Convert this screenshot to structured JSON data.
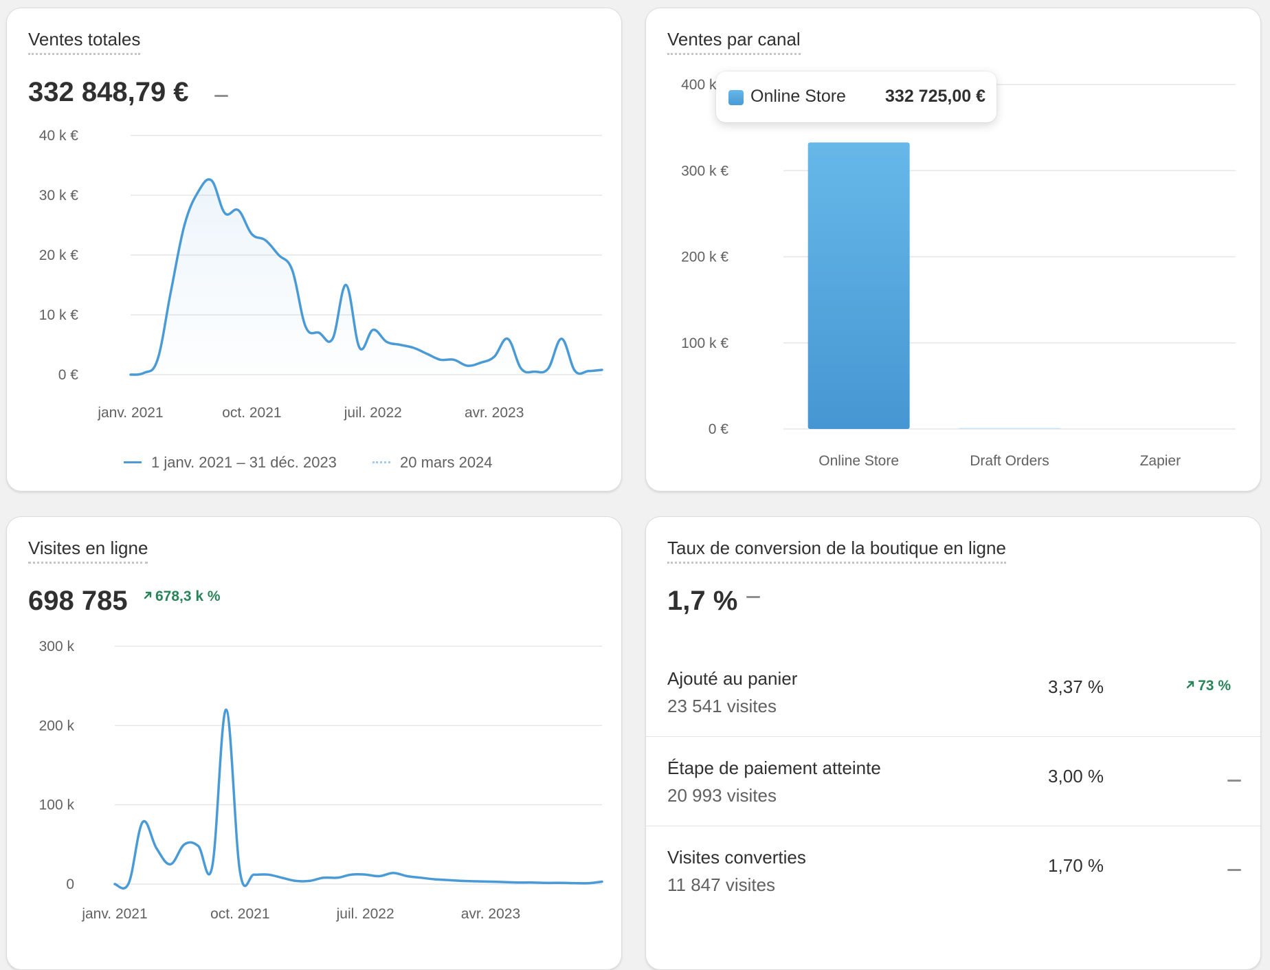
{
  "sales": {
    "title": "Ventes totales",
    "value": "332 848,79 €",
    "comparison": "—",
    "legend": {
      "current": "1 janv. 2021 – 31 déc. 2023",
      "previous": "20 mars 2024"
    },
    "line_color": "#4a9ad6"
  },
  "channel": {
    "title": "Ventes par canal",
    "tooltip": {
      "name": "Online Store",
      "value": "332 725,00 €"
    },
    "bar_color": "#4a9ad6"
  },
  "visits": {
    "title": "Visites en ligne",
    "value": "698 785",
    "trend": "678,3 k %",
    "trend_icon": "arrow-up-right-icon",
    "line_color": "#4a9ad6"
  },
  "conversion": {
    "title": "Taux de conversion de la boutique en ligne",
    "value": "1,7 %",
    "comparison": "—",
    "rows": [
      {
        "label": "Ajouté au panier",
        "sub": "23 541 visites",
        "pct": "3,37 %",
        "change": "73 %",
        "change_type": "up"
      },
      {
        "label": "Étape de paiement atteinte",
        "sub": "20 993 visites",
        "pct": "3,00 %",
        "change": "—",
        "change_type": "none"
      },
      {
        "label": "Visites converties",
        "sub": "11 847 visites",
        "pct": "1,70 %",
        "change": "—",
        "change_type": "none"
      }
    ],
    "up_color": "#29845a"
  },
  "chart_data": [
    {
      "type": "area",
      "title": "Ventes totales",
      "y_ticks": [
        "0 €",
        "10 k €",
        "20 k €",
        "30 k €",
        "40 k €"
      ],
      "ylim": [
        0,
        40000
      ],
      "x_ticks": [
        "janv. 2021",
        "oct. 2021",
        "juil. 2022",
        "avr. 2023"
      ],
      "x_tick_index": [
        0,
        9,
        18,
        27
      ],
      "grid": true,
      "legend_position": "bottom",
      "series": [
        {
          "name": "1 janv. 2021 – 31 déc. 2023",
          "values": [
            0,
            300,
            2500,
            14000,
            25000,
            30500,
            32500,
            27000,
            27500,
            23500,
            22500,
            20000,
            17500,
            8000,
            7000,
            6000,
            15000,
            4500,
            7500,
            5500,
            5000,
            4500,
            3500,
            2500,
            2500,
            1500,
            2000,
            3000,
            6000,
            1000,
            500,
            1000,
            6000,
            600,
            600,
            800
          ]
        }
      ]
    },
    {
      "type": "bar",
      "title": "Ventes par canal",
      "categories": [
        "Online Store",
        "Draft Orders",
        "Zapier"
      ],
      "values": [
        332725,
        123.79,
        0
      ],
      "y_ticks": [
        "0 €",
        "100 k €",
        "200 k €",
        "300 k €",
        "400 k €"
      ],
      "ylim": [
        0,
        400000
      ],
      "grid": true
    },
    {
      "type": "line",
      "title": "Visites en ligne",
      "y_ticks": [
        "0",
        "100 k",
        "200 k",
        "300 k"
      ],
      "ylim": [
        0,
        300000
      ],
      "x_ticks": [
        "janv. 2021",
        "oct. 2021",
        "juil. 2022",
        "avr. 2023"
      ],
      "x_tick_index": [
        0,
        9,
        18,
        27
      ],
      "grid": true,
      "series": [
        {
          "values": [
            0,
            1000,
            78000,
            45000,
            25000,
            50000,
            48000,
            22000,
            220000,
            15000,
            12000,
            12000,
            8000,
            4000,
            4000,
            8000,
            8000,
            12000,
            12000,
            10000,
            14000,
            10000,
            8000,
            6000,
            5000,
            4000,
            3500,
            3000,
            2500,
            2000,
            2000,
            1500,
            1500,
            1200,
            1000,
            3000
          ]
        }
      ]
    }
  ]
}
